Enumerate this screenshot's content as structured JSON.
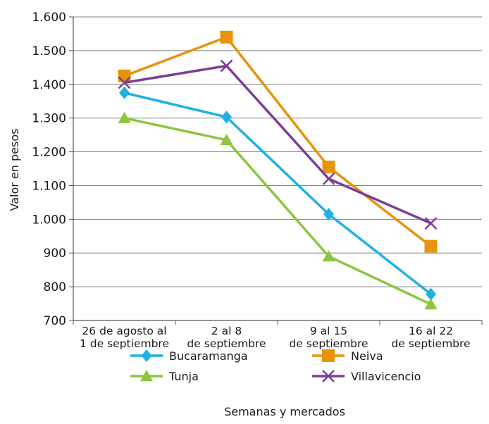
{
  "chart_data": {
    "type": "line",
    "categories": [
      [
        "26 de agosto al",
        "1 de septiembre"
      ],
      [
        "2 al 8",
        "de septiembre"
      ],
      [
        "9 al 15",
        "de septiembre"
      ],
      [
        "16 al 22",
        "de septiembre"
      ]
    ],
    "ylabel": "Valor en pesos",
    "xlabel": "Semanas y mercados",
    "ylim": [
      700,
      1600
    ],
    "yticks": [
      {
        "value": 700,
        "label": "700"
      },
      {
        "value": 800,
        "label": "800"
      },
      {
        "value": 900,
        "label": "900"
      },
      {
        "value": 1000,
        "label": "1.000"
      },
      {
        "value": 1100,
        "label": "1.100"
      },
      {
        "value": 1200,
        "label": "1.200"
      },
      {
        "value": 1300,
        "label": "1.300"
      },
      {
        "value": 1400,
        "label": "1.400"
      },
      {
        "value": 1500,
        "label": "1.500"
      },
      {
        "value": 1600,
        "label": "1.600"
      }
    ],
    "grid": true,
    "legend_position": "bottom",
    "series": [
      {
        "name": "Neiva",
        "color": "#E8930C",
        "marker": "square",
        "values": [
          1425,
          1540,
          1155,
          920
        ]
      },
      {
        "name": "Villavicencio",
        "color": "#7B3F97",
        "marker": "x",
        "values": [
          1405,
          1455,
          1120,
          988
        ]
      },
      {
        "name": "Bucaramanga",
        "color": "#1FB1E6",
        "marker": "diamond",
        "values": [
          1375,
          1303,
          1015,
          778
        ]
      },
      {
        "name": "Tunja",
        "color": "#8CC63F",
        "marker": "triangle",
        "values": [
          1300,
          1235,
          890,
          748
        ]
      }
    ],
    "legend_order": [
      "Bucaramanga",
      "Neiva",
      "Tunja",
      "Villavicencio"
    ]
  }
}
